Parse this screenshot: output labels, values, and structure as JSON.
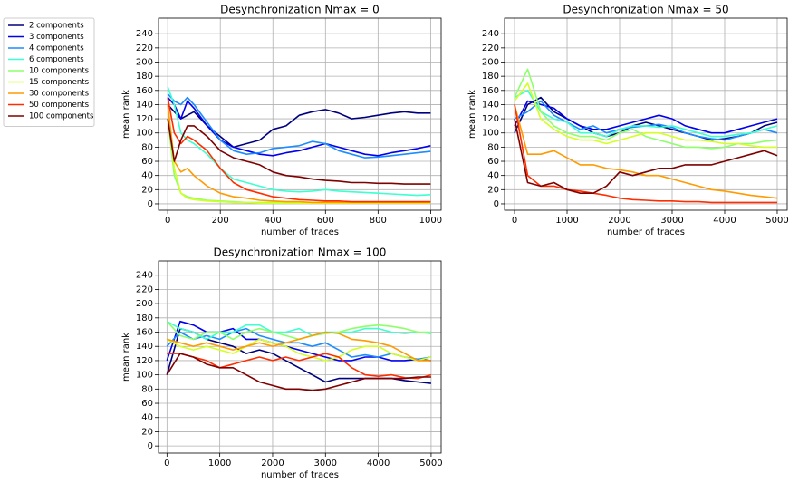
{
  "chart_data": [
    {
      "type": "line",
      "title": "Desynchronization Nmax = 0",
      "xlabel": "number of traces",
      "ylabel": "mean rank",
      "legend": "outside-left",
      "grid": true,
      "x": [
        0,
        25,
        50,
        75,
        100,
        150,
        200,
        250,
        300,
        350,
        400,
        450,
        500,
        550,
        600,
        650,
        700,
        750,
        800,
        850,
        900,
        950,
        1000
      ],
      "xlim": [
        -35,
        1040
      ],
      "ylim": [
        -9,
        262
      ],
      "xticks": [
        0,
        200,
        400,
        600,
        800,
        1000
      ],
      "yticks": [
        0,
        20,
        40,
        60,
        80,
        100,
        120,
        140,
        160,
        180,
        200,
        220,
        240
      ],
      "series": [
        {
          "name": "2 components",
          "color": "#00007f",
          "values": [
            140,
            130,
            120,
            125,
            130,
            110,
            95,
            80,
            85,
            90,
            105,
            110,
            125,
            130,
            133,
            128,
            120,
            122,
            125,
            128,
            130,
            128,
            128
          ]
        },
        {
          "name": "3 components",
          "color": "#0000ee",
          "values": [
            150,
            140,
            120,
            145,
            135,
            110,
            90,
            80,
            75,
            70,
            68,
            72,
            75,
            80,
            85,
            80,
            75,
            70,
            68,
            72,
            75,
            78,
            82
          ]
        },
        {
          "name": "4 components",
          "color": "#1c8cff",
          "values": [
            155,
            145,
            140,
            150,
            140,
            115,
            90,
            75,
            70,
            72,
            78,
            80,
            82,
            88,
            85,
            75,
            70,
            65,
            66,
            68,
            70,
            72,
            74
          ]
        },
        {
          "name": "6 components",
          "color": "#3dffd0",
          "values": [
            165,
            140,
            100,
            90,
            85,
            70,
            50,
            35,
            30,
            25,
            20,
            18,
            17,
            18,
            20,
            18,
            17,
            16,
            15,
            14,
            13,
            12,
            13
          ]
        },
        {
          "name": "10 components",
          "color": "#8dff6a",
          "values": [
            120,
            40,
            15,
            10,
            8,
            5,
            4,
            3,
            2,
            2,
            2,
            2,
            1,
            1,
            1,
            1,
            1,
            1,
            1,
            1,
            1,
            1,
            1
          ]
        },
        {
          "name": "15 components",
          "color": "#d4ff23",
          "values": [
            130,
            50,
            15,
            8,
            6,
            4,
            3,
            2,
            2,
            1,
            1,
            1,
            1,
            1,
            1,
            1,
            1,
            1,
            1,
            1,
            1,
            1,
            1
          ]
        },
        {
          "name": "30 components",
          "color": "#ff9a00",
          "values": [
            140,
            60,
            45,
            50,
            40,
            25,
            15,
            10,
            8,
            5,
            4,
            3,
            3,
            2,
            2,
            2,
            2,
            2,
            2,
            2,
            2,
            2,
            2
          ]
        },
        {
          "name": "50 components",
          "color": "#ff2d00",
          "values": [
            150,
            100,
            85,
            95,
            90,
            75,
            50,
            30,
            20,
            15,
            10,
            8,
            6,
            5,
            4,
            4,
            3,
            3,
            3,
            3,
            3,
            3,
            3
          ]
        },
        {
          "name": "100 components",
          "color": "#7f0000",
          "values": [
            120,
            60,
            90,
            110,
            110,
            95,
            75,
            65,
            60,
            55,
            45,
            40,
            38,
            35,
            33,
            32,
            30,
            30,
            29,
            29,
            28,
            28,
            28
          ]
        }
      ]
    },
    {
      "type": "line",
      "title": "Desynchronization Nmax = 50",
      "xlabel": "number of traces",
      "ylabel": "mean rank",
      "grid": true,
      "x": [
        0,
        250,
        500,
        750,
        1000,
        1250,
        1500,
        1750,
        2000,
        2250,
        2500,
        2750,
        3000,
        3250,
        3500,
        3750,
        4000,
        4250,
        4500,
        4750,
        5000
      ],
      "xlim": [
        -190,
        5190
      ],
      "ylim": [
        -9,
        262
      ],
      "xticks": [
        0,
        1000,
        2000,
        3000,
        4000,
        5000
      ],
      "yticks": [
        0,
        20,
        40,
        60,
        80,
        100,
        120,
        140,
        160,
        180,
        200,
        220,
        240
      ],
      "series": [
        {
          "color": "#00007f",
          "values": [
            100,
            140,
            150,
            130,
            120,
            110,
            100,
            95,
            100,
            110,
            115,
            110,
            105,
            100,
            95,
            90,
            92,
            95,
            100,
            110,
            115
          ]
        },
        {
          "color": "#0000ee",
          "values": [
            110,
            145,
            140,
            135,
            120,
            110,
            105,
            105,
            110,
            115,
            120,
            125,
            120,
            110,
            105,
            100,
            100,
            105,
            110,
            115,
            120
          ]
        },
        {
          "color": "#1c8cff",
          "values": [
            120,
            130,
            145,
            125,
            115,
            105,
            110,
            100,
            105,
            108,
            110,
            112,
            108,
            100,
            95,
            92,
            90,
            95,
            100,
            105,
            100
          ]
        },
        {
          "color": "#3dffd0",
          "values": [
            150,
            160,
            130,
            120,
            115,
            100,
            100,
            95,
            105,
            110,
            110,
            108,
            110,
            105,
            100,
            95,
            95,
            98,
            100,
            105,
            110
          ]
        },
        {
          "color": "#8dff6a",
          "values": [
            150,
            190,
            130,
            110,
            100,
            95,
            95,
            90,
            100,
            105,
            95,
            90,
            85,
            80,
            80,
            78,
            80,
            85,
            85,
            88,
            90
          ]
        },
        {
          "color": "#d4ff23",
          "values": [
            145,
            170,
            120,
            105,
            95,
            90,
            90,
            85,
            90,
            95,
            100,
            100,
            95,
            90,
            90,
            88,
            85,
            85,
            82,
            80,
            80
          ]
        },
        {
          "color": "#ff9a00",
          "values": [
            140,
            70,
            70,
            75,
            65,
            55,
            55,
            50,
            48,
            45,
            40,
            40,
            35,
            30,
            25,
            20,
            18,
            15,
            12,
            10,
            8
          ]
        },
        {
          "color": "#ff2d00",
          "values": [
            140,
            40,
            25,
            25,
            20,
            18,
            15,
            12,
            8,
            6,
            5,
            4,
            4,
            3,
            3,
            2,
            2,
            2,
            2,
            2,
            2
          ]
        },
        {
          "color": "#7f0000",
          "values": [
            120,
            30,
            25,
            30,
            20,
            15,
            15,
            25,
            45,
            40,
            45,
            50,
            50,
            55,
            55,
            55,
            60,
            65,
            70,
            75,
            68
          ]
        }
      ]
    },
    {
      "type": "line",
      "title": "Desynchronization Nmax = 100",
      "xlabel": "number of traces",
      "ylabel": "mean rank",
      "grid": true,
      "x": [
        0,
        250,
        500,
        750,
        1000,
        1250,
        1500,
        1750,
        2000,
        2250,
        2500,
        2750,
        3000,
        3250,
        3500,
        3750,
        4000,
        4250,
        4500,
        4750,
        5000
      ],
      "xlim": [
        -160,
        5190
      ],
      "ylim": [
        -10,
        260
      ],
      "xticks": [
        0,
        1000,
        2000,
        3000,
        4000,
        5000
      ],
      "yticks": [
        0,
        20,
        40,
        60,
        80,
        100,
        120,
        140,
        160,
        180,
        200,
        220,
        240
      ],
      "series": [
        {
          "color": "#00007f",
          "values": [
            100,
            165,
            160,
            150,
            145,
            140,
            130,
            135,
            130,
            120,
            110,
            100,
            90,
            95,
            95,
            95,
            95,
            95,
            92,
            90,
            88
          ]
        },
        {
          "color": "#0000ee",
          "values": [
            120,
            175,
            170,
            160,
            160,
            165,
            150,
            150,
            145,
            140,
            135,
            130,
            125,
            120,
            120,
            125,
            125,
            120,
            120,
            122,
            120
          ]
        },
        {
          "color": "#1c8cff",
          "values": [
            140,
            160,
            150,
            155,
            150,
            160,
            165,
            155,
            150,
            145,
            145,
            140,
            145,
            135,
            125,
            128,
            125,
            130,
            125,
            122,
            125
          ]
        },
        {
          "color": "#3dffd0",
          "values": [
            175,
            165,
            160,
            150,
            160,
            160,
            170,
            170,
            160,
            160,
            165,
            155,
            160,
            160,
            160,
            165,
            165,
            160,
            158,
            160,
            158
          ]
        },
        {
          "color": "#8dff6a",
          "values": [
            175,
            155,
            150,
            160,
            160,
            150,
            160,
            165,
            160,
            155,
            150,
            155,
            158,
            160,
            165,
            168,
            170,
            168,
            165,
            160,
            160
          ]
        },
        {
          "color": "#d4ff23",
          "values": [
            150,
            140,
            135,
            140,
            135,
            130,
            140,
            150,
            145,
            140,
            130,
            125,
            120,
            125,
            135,
            140,
            140,
            130,
            125,
            120,
            125
          ]
        },
        {
          "color": "#ff9a00",
          "values": [
            150,
            145,
            140,
            145,
            140,
            135,
            140,
            145,
            140,
            145,
            150,
            155,
            160,
            158,
            150,
            148,
            145,
            140,
            130,
            120,
            120
          ]
        },
        {
          "color": "#ff2d00",
          "values": [
            130,
            130,
            125,
            120,
            110,
            115,
            120,
            125,
            120,
            125,
            120,
            125,
            130,
            125,
            110,
            100,
            98,
            100,
            96,
            95,
            100
          ]
        },
        {
          "color": "#7f0000",
          "values": [
            100,
            130,
            125,
            115,
            110,
            110,
            100,
            90,
            85,
            80,
            80,
            78,
            80,
            85,
            90,
            95,
            95,
            95,
            95,
            97,
            97
          ]
        }
      ]
    }
  ]
}
